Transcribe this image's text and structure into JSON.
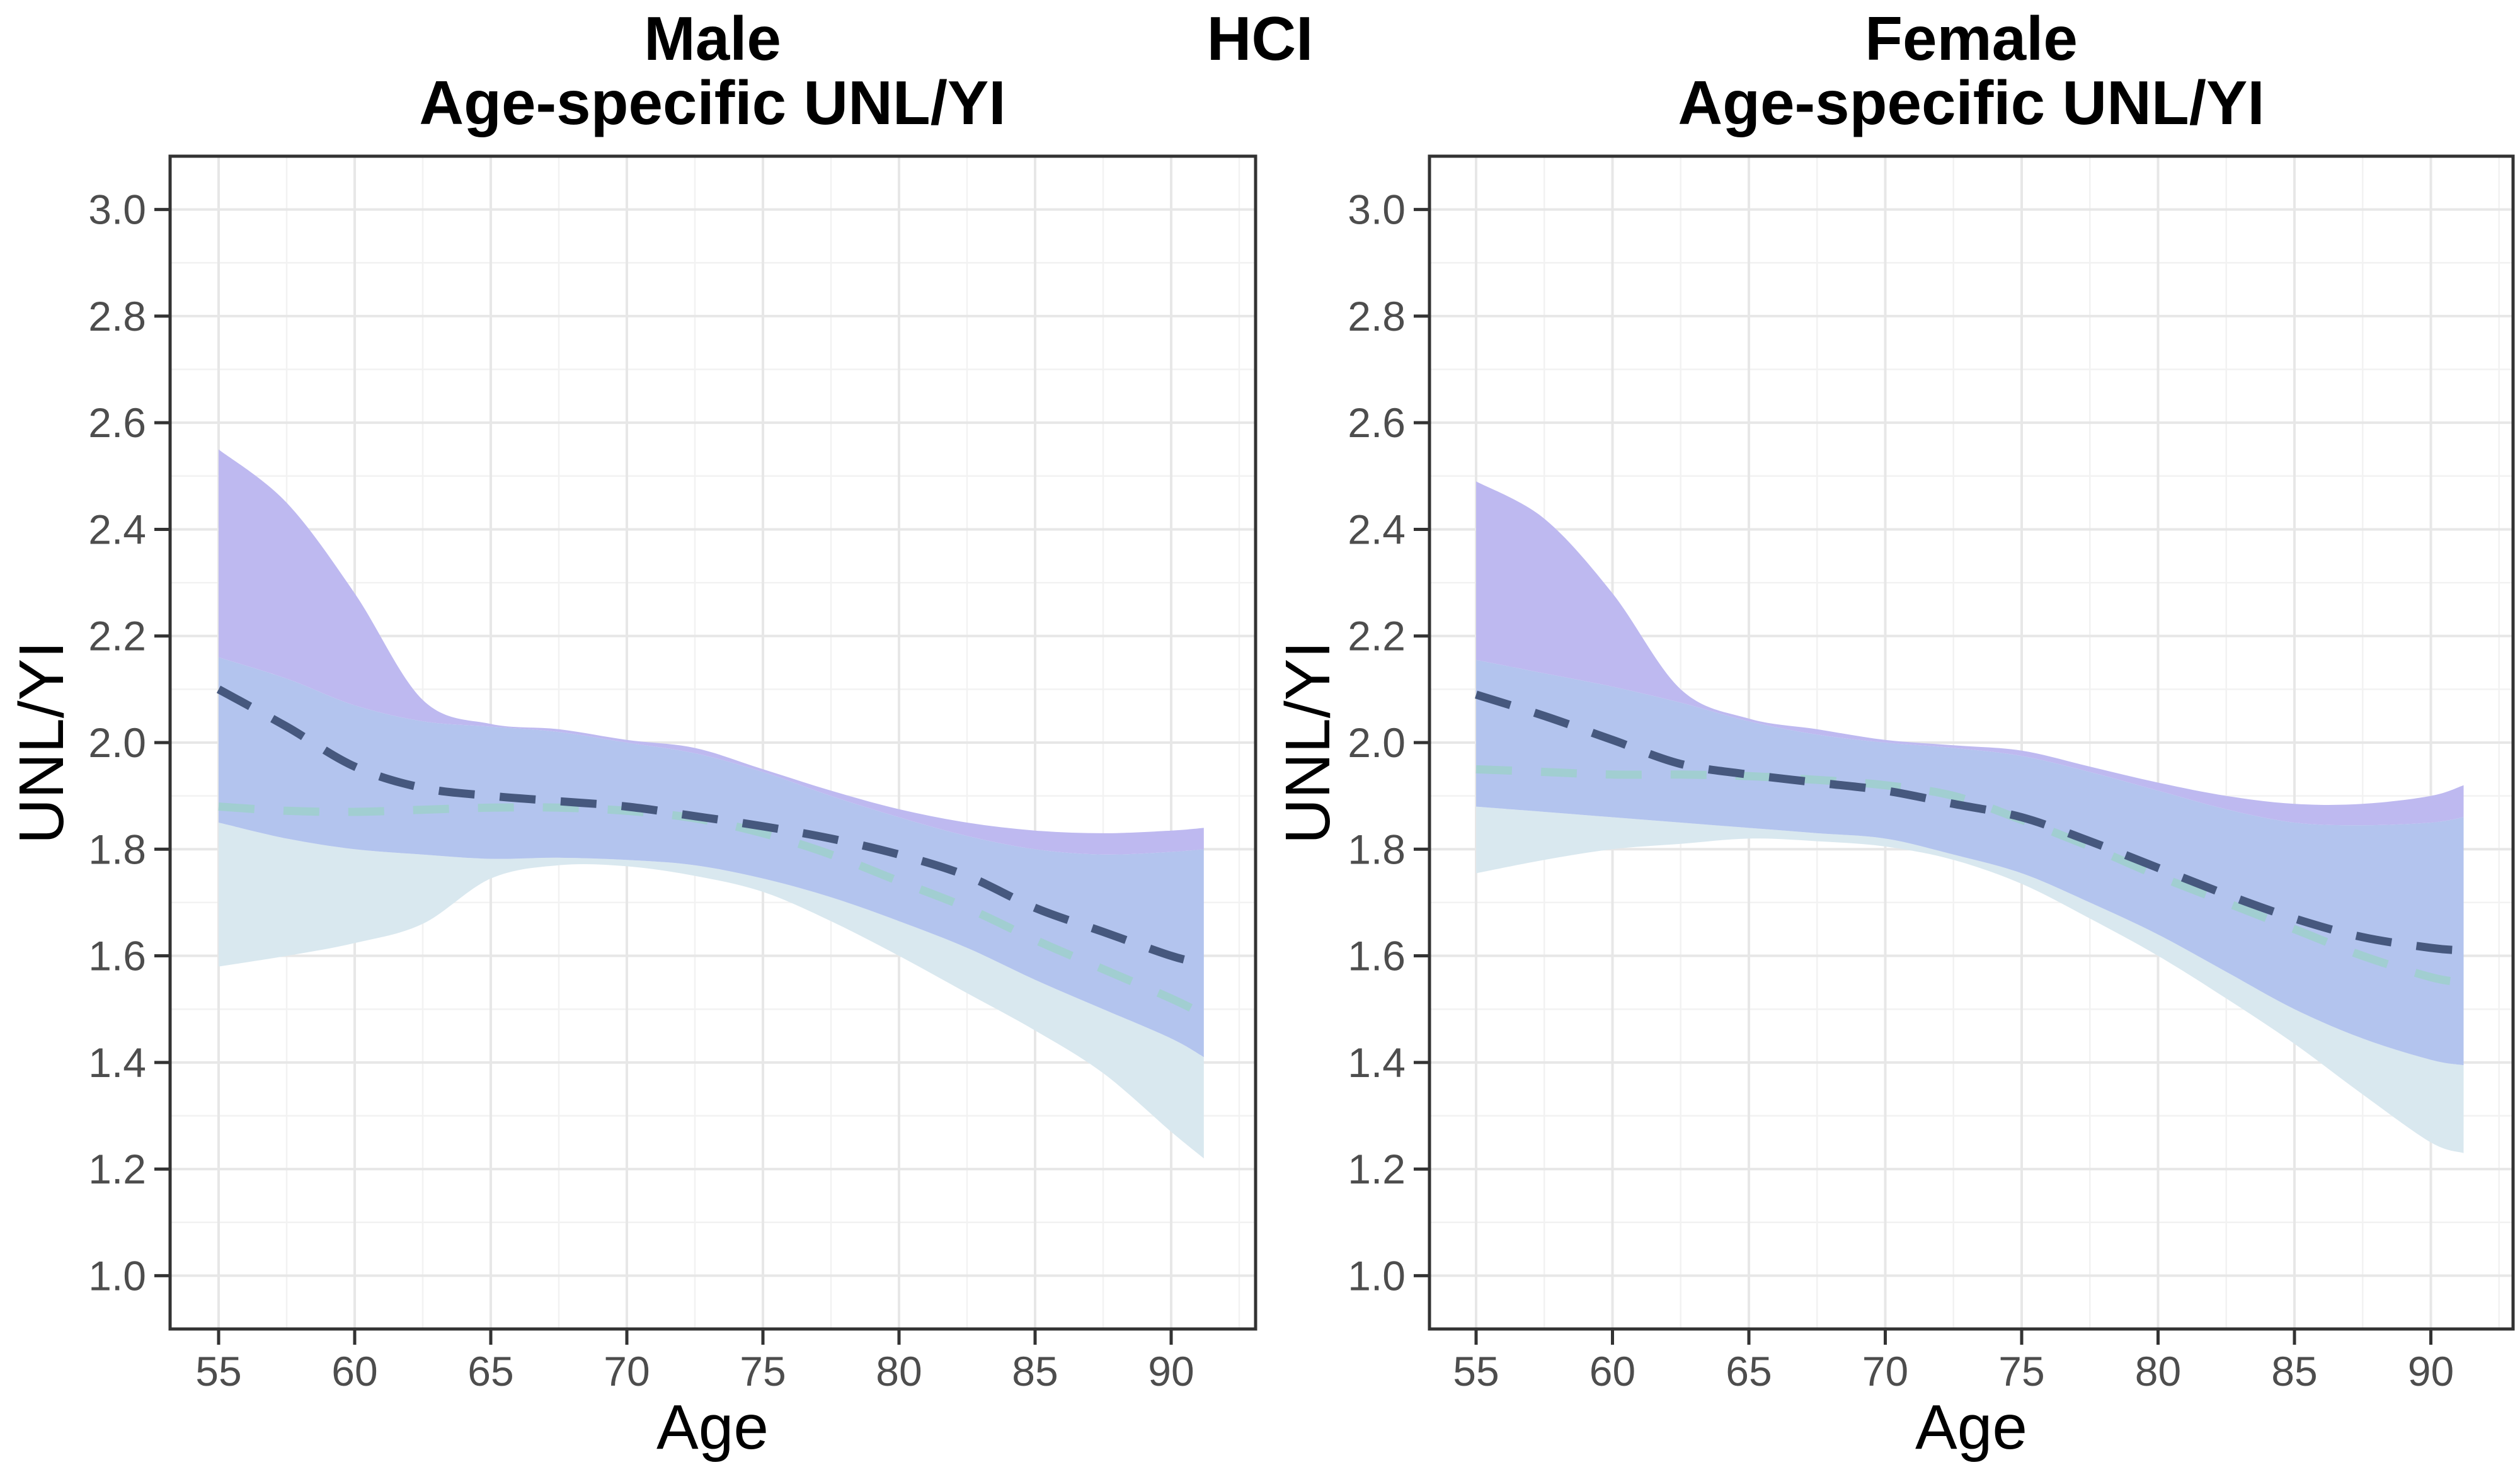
{
  "header": {
    "male_title_line1": "Male",
    "male_title_line2": "Age-specific UNL/YI",
    "center_title": "HCI",
    "female_title_line1": "Female",
    "female_title_line2": "Age-specific UNL/YI"
  },
  "axes": {
    "x_label": "Age",
    "y_label": "UNL/YI",
    "x_tick_labels": [
      "55",
      "60",
      "65",
      "70",
      "75",
      "80",
      "85",
      "90"
    ],
    "y_tick_labels": [
      "3.0",
      "2.8",
      "2.6",
      "2.4",
      "2.2",
      "2.0",
      "1.8",
      "1.6",
      "1.4",
      "1.2",
      "1.0"
    ]
  },
  "colors": {
    "dark_band_fill": "#beb9f0",
    "overlap_band_fill": "#b3c4ee",
    "light_band_fill": "#d9e8ef",
    "dark_line": "#46587e",
    "light_line": "#9ed0cb",
    "grid_major": "#e7e7e7",
    "grid_minor": "#f2f2f2",
    "panel_border": "#333333",
    "tick_mark": "#333333",
    "tick_text": "#4d4d4d",
    "title_text": "#000000"
  },
  "chart_data": [
    {
      "type": "area",
      "panel": "Male",
      "title": "Male — Age-specific UNL/YI (HCI)",
      "xlabel": "Age",
      "ylabel": "UNL/YI",
      "xlim": [
        53.2,
        93.1
      ],
      "ylim": [
        0.9,
        3.1
      ],
      "x_ticks": [
        55,
        60,
        65,
        70,
        75,
        80,
        85,
        90
      ],
      "y_ticks": [
        3.0,
        2.8,
        2.6,
        2.4,
        2.2,
        2.0,
        1.8,
        1.6,
        1.4,
        1.2,
        1.0
      ],
      "grid": "major and minor, light gray, white panel",
      "legend": "none shown",
      "ages": [
        55,
        57.5,
        60,
        62.5,
        65,
        67.5,
        70,
        72.5,
        75,
        77.5,
        80,
        82.5,
        85,
        87.5,
        90,
        91.2
      ],
      "series": {
        "dark_dashed_line": [
          2.1,
          2.03,
          1.955,
          1.915,
          1.9,
          1.89,
          1.88,
          1.862,
          1.843,
          1.82,
          1.79,
          1.75,
          1.69,
          1.645,
          1.6,
          1.585
        ],
        "dark_band_upper": [
          2.55,
          2.45,
          2.28,
          2.08,
          2.035,
          2.025,
          2.005,
          1.99,
          1.95,
          1.91,
          1.875,
          1.85,
          1.835,
          1.83,
          1.835,
          1.84
        ],
        "dark_band_lower": [
          1.85,
          1.82,
          1.8,
          1.79,
          1.782,
          1.784,
          1.78,
          1.77,
          1.745,
          1.71,
          1.665,
          1.615,
          1.555,
          1.5,
          1.445,
          1.41
        ],
        "light_dashed_line": [
          1.88,
          1.872,
          1.87,
          1.874,
          1.878,
          1.878,
          1.872,
          1.858,
          1.83,
          1.79,
          1.74,
          1.69,
          1.63,
          1.575,
          1.52,
          1.49
        ],
        "light_band_upper": [
          2.16,
          2.12,
          2.07,
          2.04,
          2.03,
          2.02,
          2.0,
          1.98,
          1.945,
          1.9,
          1.86,
          1.825,
          1.8,
          1.79,
          1.795,
          1.8
        ],
        "light_band_lower": [
          1.58,
          1.6,
          1.624,
          1.66,
          1.745,
          1.77,
          1.768,
          1.75,
          1.72,
          1.665,
          1.6,
          1.53,
          1.46,
          1.38,
          1.27,
          1.22
        ]
      }
    },
    {
      "type": "area",
      "panel": "Female",
      "title": "Female — Age-specific UNL/YI (HCI)",
      "xlabel": "Age",
      "ylabel": "UNL/YI",
      "xlim": [
        53.3,
        93.0
      ],
      "ylim": [
        0.9,
        3.1
      ],
      "x_ticks": [
        55,
        60,
        65,
        70,
        75,
        80,
        85,
        90
      ],
      "y_ticks": [
        3.0,
        2.8,
        2.6,
        2.4,
        2.2,
        2.0,
        1.8,
        1.6,
        1.4,
        1.2,
        1.0
      ],
      "grid": "major and minor, light gray, white panel",
      "legend": "none shown",
      "ages": [
        55,
        57.5,
        60,
        62.5,
        65,
        67.5,
        70,
        72.5,
        75,
        77.5,
        80,
        82.5,
        85,
        87.5,
        90,
        91.2
      ],
      "series": {
        "dark_dashed_line": [
          2.09,
          2.05,
          2.005,
          1.96,
          1.94,
          1.925,
          1.91,
          1.885,
          1.86,
          1.815,
          1.765,
          1.715,
          1.67,
          1.635,
          1.615,
          1.61
        ],
        "dark_band_upper": [
          2.49,
          2.42,
          2.28,
          2.1,
          2.045,
          2.025,
          2.005,
          1.995,
          1.985,
          1.955,
          1.925,
          1.9,
          1.885,
          1.885,
          1.9,
          1.92
        ],
        "dark_band_lower": [
          1.88,
          1.87,
          1.86,
          1.85,
          1.84,
          1.83,
          1.82,
          1.79,
          1.755,
          1.7,
          1.64,
          1.57,
          1.5,
          1.445,
          1.405,
          1.395
        ],
        "light_dashed_line": [
          1.95,
          1.945,
          1.94,
          1.94,
          1.937,
          1.93,
          1.92,
          1.9,
          1.855,
          1.805,
          1.75,
          1.7,
          1.65,
          1.6,
          1.56,
          1.55
        ],
        "light_band_upper": [
          2.155,
          2.13,
          2.105,
          2.075,
          2.04,
          2.015,
          2.0,
          1.99,
          1.975,
          1.945,
          1.91,
          1.875,
          1.85,
          1.845,
          1.85,
          1.86
        ],
        "light_band_lower": [
          1.755,
          1.78,
          1.8,
          1.81,
          1.82,
          1.815,
          1.805,
          1.78,
          1.735,
          1.67,
          1.6,
          1.52,
          1.435,
          1.34,
          1.25,
          1.23
        ]
      }
    }
  ]
}
